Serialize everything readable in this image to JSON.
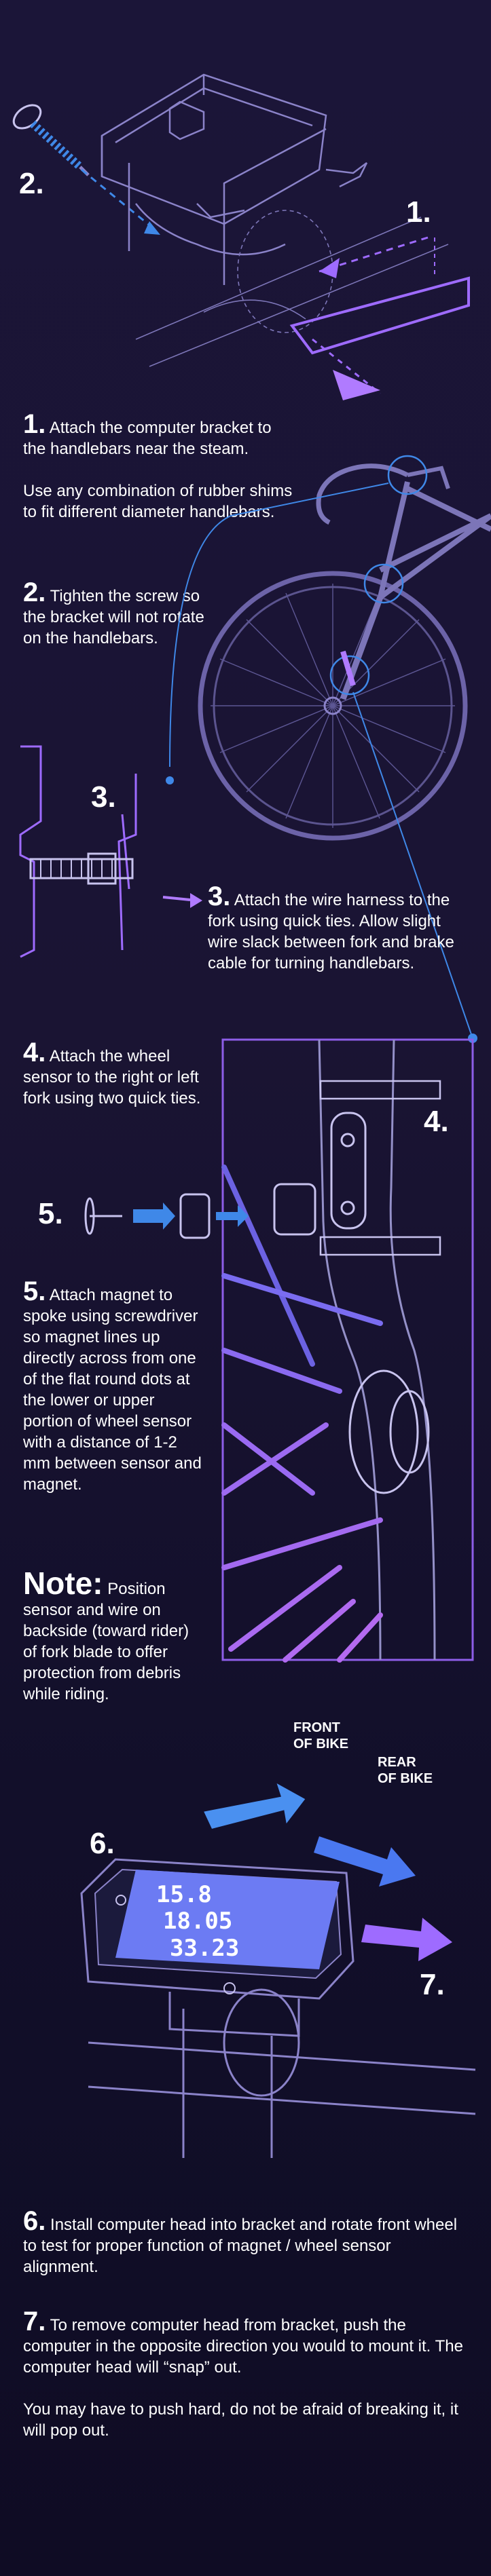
{
  "step_markers": {
    "s1": "1.",
    "s2": "2.",
    "s3": "3.",
    "s4": "4.",
    "s5": "5.",
    "s6": "6.",
    "s7": "7."
  },
  "steps": {
    "step1": {
      "num": "1.",
      "text": "Attach the computer bracket to the handlebars near the steam.",
      "extra": "Use any combination of rubber shims to fit different diameter handlebars."
    },
    "step2": {
      "num": "2.",
      "text": "Tighten the screw so the bracket will not rotate on the handlebars."
    },
    "step3": {
      "num": "3.",
      "text": "Attach the wire harness to the fork using quick ties. Allow slight wire slack between fork and brake cable for turning handlebars."
    },
    "step4": {
      "num": "4.",
      "text": "Attach the wheel sensor to the right or left fork using two quick ties."
    },
    "step5": {
      "num": "5.",
      "text": "Attach magnet to spoke using screwdriver so magnet lines up directly across from one of the flat round dots at the lower or upper portion of wheel sensor with a distance of 1-2 mm between sensor and magnet."
    },
    "note": {
      "title": "Note:",
      "text": "Position sensor and wire on backside (toward rider) of fork blade to offer protection from debris while riding."
    },
    "step6": {
      "num": "6.",
      "text": "Install computer head into bracket and rotate front wheel to test for proper function of magnet / wheel sensor alignment."
    },
    "step7": {
      "num": "7.",
      "text": "To remove computer head from bracket, push the computer in the opposite direction you would to mount it. The computer head will “snap” out.",
      "extra": "You may have to push hard, do not be afraid of breaking it, it will pop out."
    }
  },
  "direction_labels": {
    "front_of_bike": "FRONT\nOF BIKE",
    "rear_of_bike": "REAR\nOF BIKE"
  },
  "display_readout": {
    "top": "15.8",
    "mid": "18.05",
    "bottom": "33.23"
  },
  "colors": {
    "background_top": "#1b1538",
    "background_bottom": "#0f0c24",
    "line_art": "#8b83c9",
    "accent_purple": "#9e6bff",
    "accent_blue": "#3f88e8",
    "lcd_screen": "#6c7bf3"
  },
  "icons": [
    "screw-icon",
    "arrow-icon",
    "bicycle-icon",
    "fork-icon",
    "magnet-icon",
    "wheel-sensor-icon",
    "bike-computer-icon"
  ]
}
